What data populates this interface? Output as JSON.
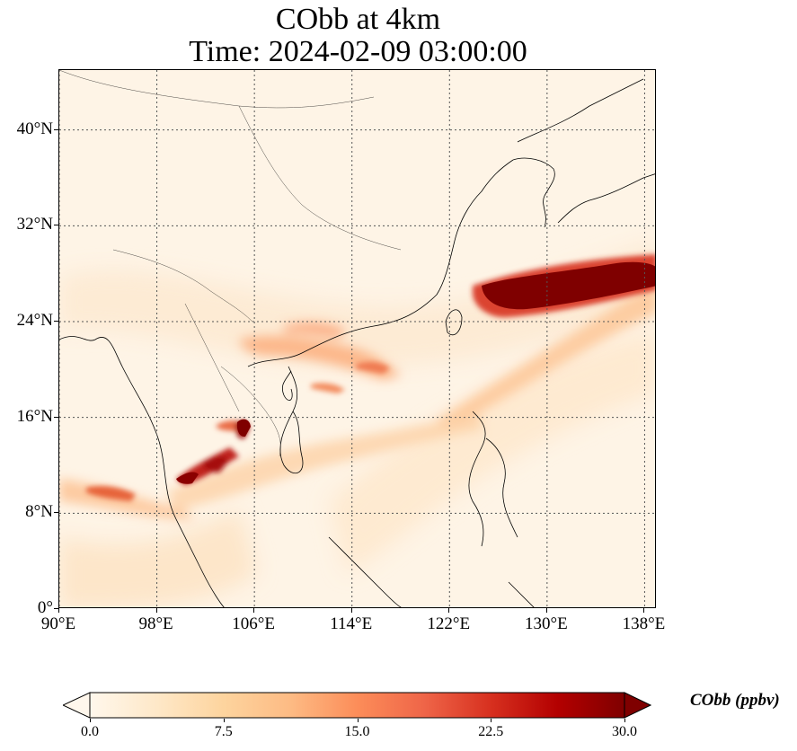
{
  "title": {
    "line1": "CObb at 4km",
    "line2": "Time: 2024-02-09 03:00:00"
  },
  "map": {
    "projection": "PlateCarree",
    "lon_range": [
      90,
      139
    ],
    "lat_range": [
      0,
      45
    ],
    "gridlines": "dotted",
    "lat_ticks": [
      "0°",
      "8°N",
      "16°N",
      "24°N",
      "32°N",
      "40°N"
    ],
    "lon_ticks": [
      "90°E",
      "98°E",
      "106°E",
      "114°E",
      "122°E",
      "130°E",
      "138°E"
    ],
    "lat_tick_values": [
      0,
      8,
      16,
      24,
      32,
      40
    ],
    "lon_tick_values": [
      90,
      98,
      106,
      114,
      122,
      130,
      138
    ]
  },
  "colorbar": {
    "label": "CObb (ppbv)",
    "colormap": "OrRd",
    "extend": "both",
    "min": 0,
    "max": 30,
    "tick_labels": [
      "0.0",
      "7.5",
      "15.0",
      "22.5",
      "30.0"
    ],
    "tick_values": [
      0,
      7.5,
      15,
      22.5,
      30
    ],
    "colors": [
      "#fff7ec",
      "#fee8c8",
      "#fdd49e",
      "#fdbb84",
      "#fc8d59",
      "#ef6548",
      "#d7301f",
      "#b30000",
      "#7f0000"
    ]
  }
}
